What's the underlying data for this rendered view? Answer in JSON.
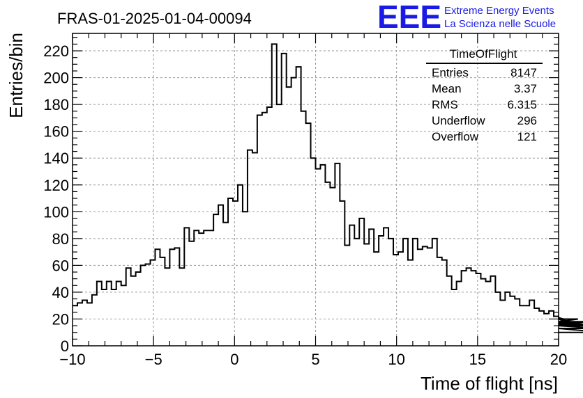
{
  "title": "FRAS-01-2025-01-04-00094",
  "branding": {
    "logo_text": "EEE",
    "line1": "Extreme Energy Events",
    "line2": "La Scienza nelle Scuole",
    "color": "#1a1ae6"
  },
  "stats_box": {
    "title": "TimeOfFlight",
    "rows": [
      {
        "label": "Entries",
        "value": "8147"
      },
      {
        "label": "Mean",
        "value": "3.37"
      },
      {
        "label": "RMS",
        "value": "6.315"
      },
      {
        "label": "Underflow",
        "value": "296"
      },
      {
        "label": "Overflow",
        "value": "121"
      }
    ]
  },
  "chart_data": {
    "type": "histogram",
    "title": "FRAS-01-2025-01-04-00094",
    "xlabel": "Time of flight [ns]",
    "ylabel": "Entries/bin",
    "xlim": [
      -10,
      20
    ],
    "ylim": [
      0,
      233
    ],
    "bin_width": 0.3,
    "x_ticks": [
      -10,
      -5,
      0,
      5,
      10,
      15,
      20
    ],
    "y_ticks": [
      0,
      20,
      40,
      60,
      80,
      100,
      120,
      140,
      160,
      180,
      200,
      220
    ],
    "x_tick_labels": [
      "−10",
      "−5",
      "0",
      "5",
      "10",
      "15",
      "20"
    ],
    "y_tick_labels": [
      "0",
      "20",
      "40",
      "60",
      "80",
      "100",
      "120",
      "140",
      "160",
      "180",
      "200",
      "220"
    ],
    "grid": true,
    "line_color": "#000000",
    "bins_start": -10,
    "values": [
      30,
      32,
      34,
      32,
      38,
      48,
      42,
      48,
      42,
      48,
      45,
      58,
      52,
      55,
      60,
      61,
      64,
      72,
      66,
      58,
      72,
      73,
      58,
      88,
      78,
      86,
      84,
      86,
      86,
      98,
      105,
      92,
      110,
      108,
      120,
      100,
      146,
      144,
      172,
      174,
      178,
      225,
      180,
      218,
      193,
      200,
      208,
      175,
      166,
      140,
      132,
      135,
      122,
      118,
      136,
      108,
      75,
      90,
      80,
      95,
      76,
      87,
      70,
      82,
      88,
      80,
      68,
      70,
      80,
      64,
      80,
      72,
      74,
      73,
      80,
      66,
      64,
      52,
      42,
      48,
      56,
      58,
      56,
      54,
      50,
      48,
      52,
      40,
      34,
      40,
      37,
      35,
      30,
      30,
      34,
      28,
      26,
      24,
      26,
      22,
      21,
      20,
      17,
      18,
      20,
      16,
      18,
      15,
      13,
      10
    ]
  }
}
